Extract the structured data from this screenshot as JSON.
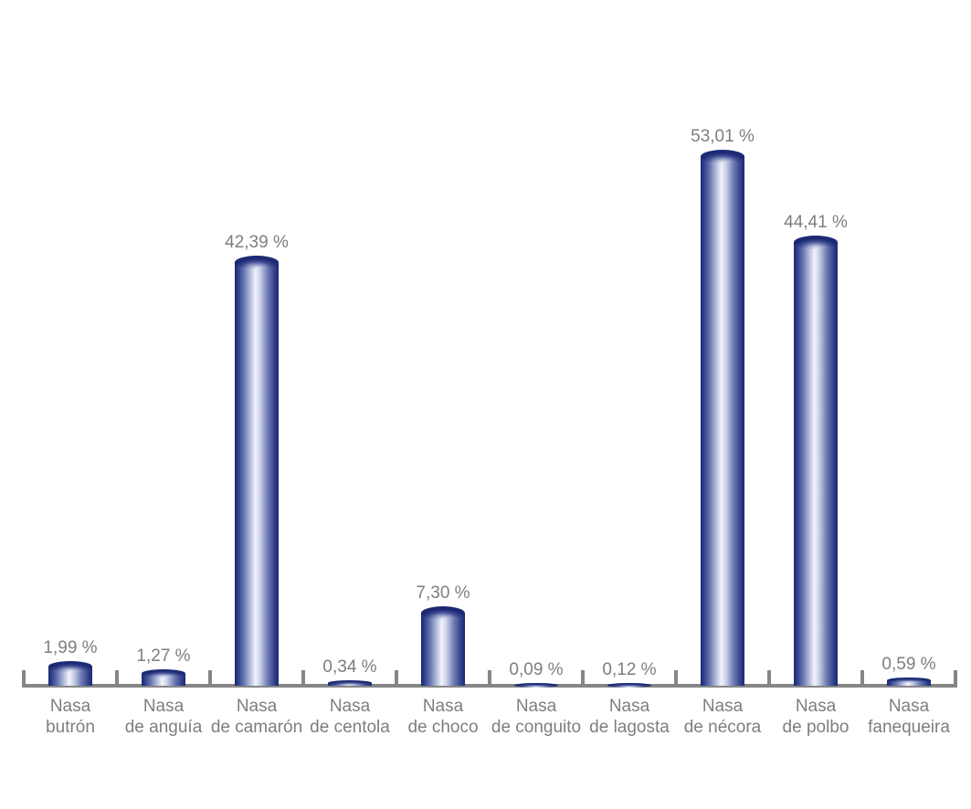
{
  "background": "#ffffff",
  "chart_data": {
    "type": "bar",
    "style": "3d-cylinder",
    "title": "",
    "xlabel": "",
    "ylabel": "",
    "unit": "%",
    "ylim": [
      0,
      60
    ],
    "grid": false,
    "legend_position": "none",
    "decimal_separator": ",",
    "categories": [
      "Nasa butrón",
      "Nasa de anguía",
      "Nasa de camarón",
      "Nasa de centola",
      "Nasa de choco",
      "Nasa de conguito",
      "Nasa de lagosta",
      "Nasa de nécora",
      "Nasa de polbo",
      "Nasa fanequeira"
    ],
    "category_lines": [
      [
        "Nasa",
        "butrón"
      ],
      [
        "Nasa",
        "de anguía"
      ],
      [
        "Nasa",
        "de camarón"
      ],
      [
        "Nasa",
        "de centola"
      ],
      [
        "Nasa",
        "de choco"
      ],
      [
        "Nasa",
        "de conguito"
      ],
      [
        "Nasa",
        "de lagosta"
      ],
      [
        "Nasa",
        "de nécora"
      ],
      [
        "Nasa",
        "de polbo"
      ],
      [
        "Nasa",
        "fanequeira"
      ]
    ],
    "values": [
      1.99,
      1.27,
      42.39,
      0.34,
      7.3,
      0.09,
      0.12,
      53.01,
      44.41,
      0.59
    ],
    "value_labels": [
      "1,99 %",
      "1,27 %",
      "42,39 %",
      "0,34 %",
      "7,30 %",
      "0,09 %",
      "0,12 %",
      "53,01 %",
      "44,41 %",
      "0,59 %"
    ],
    "colors": {
      "bar_dark": "#1b2a73",
      "bar_mid": "#7c89bf",
      "bar_light": "#f2f3fa",
      "axis": "#868686",
      "label_text": "#7e7e7e"
    }
  }
}
